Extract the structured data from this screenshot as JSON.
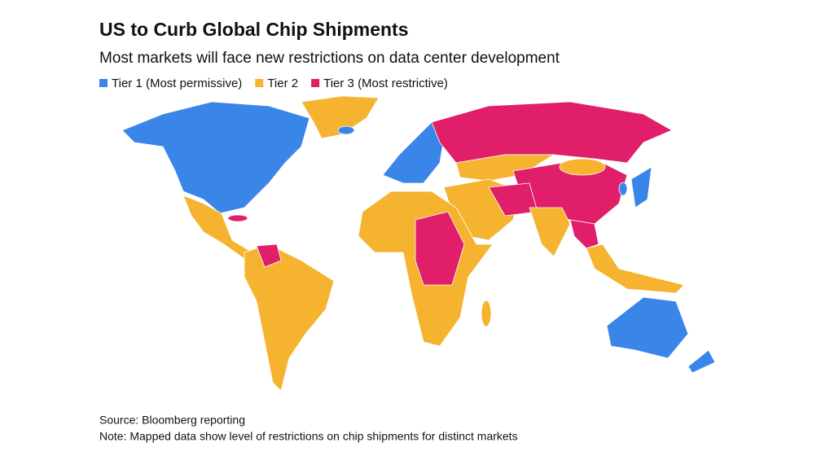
{
  "header": {
    "title": "US to Curb Global Chip Shipments",
    "subtitle": "Most markets will face new restrictions on data center development"
  },
  "legend": [
    {
      "label": "Tier 1 (Most permissive)",
      "color": "#3a86e8"
    },
    {
      "label": "Tier 2",
      "color": "#f5b32f"
    },
    {
      "label": "Tier 3 (Most restrictive)",
      "color": "#e01e6a"
    }
  ],
  "footer": {
    "source": "Source: Bloomberg reporting",
    "note": "Note: Mapped data show level of restrictions on chip shipments for distinct markets"
  }
}
